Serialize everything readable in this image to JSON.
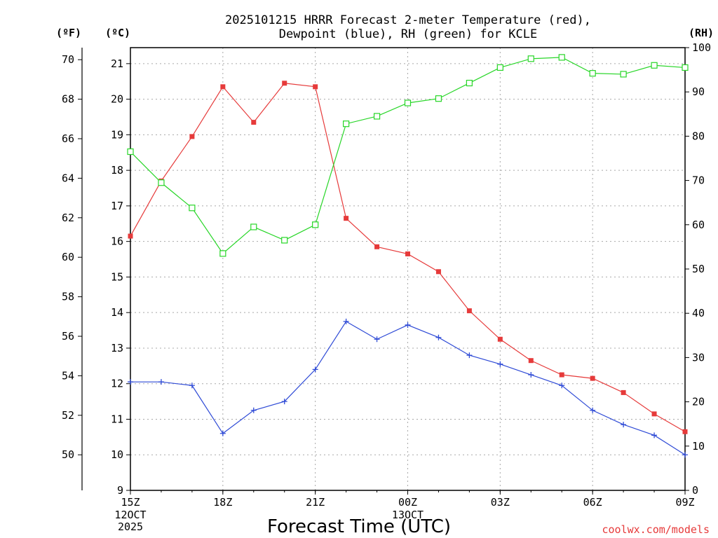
{
  "chart_data": {
    "type": "line",
    "title_lines": [
      "2025101215 HRRR Forecast 2-meter Temperature (red),",
      "Dewpoint (blue), RH (green) for KCLE"
    ],
    "xlabel": "Forecast Time (UTC)",
    "credit": "coolwx.com/models",
    "units": {
      "f": "(ºF)",
      "c": "(ºC)",
      "rh": "(RH)"
    },
    "x_range": [
      0,
      18
    ],
    "x_ticks": [
      {
        "x": 0,
        "label": "15Z",
        "sub": [
          "12OCT",
          "2025"
        ]
      },
      {
        "x": 3,
        "label": "18Z",
        "sub": []
      },
      {
        "x": 6,
        "label": "21Z",
        "sub": []
      },
      {
        "x": 9,
        "label": "00Z",
        "sub": [
          "13OCT"
        ]
      },
      {
        "x": 12,
        "label": "03Z",
        "sub": []
      },
      {
        "x": 15,
        "label": "06Z",
        "sub": []
      },
      {
        "x": 18,
        "label": "09Z",
        "sub": []
      }
    ],
    "c_range": [
      9,
      21.45
    ],
    "c_ticks": [
      "9",
      "10",
      "11",
      "12",
      "13",
      "14",
      "15",
      "16",
      "17",
      "18",
      "19",
      "20",
      "21"
    ],
    "f_ticks": [
      "50",
      "52",
      "54",
      "56",
      "58",
      "60",
      "62",
      "64",
      "66",
      "68",
      "70"
    ],
    "rh_range": [
      0,
      100
    ],
    "rh_ticks": [
      "0",
      "10",
      "20",
      "30",
      "40",
      "50",
      "60",
      "70",
      "80",
      "90",
      "100"
    ],
    "grid": true,
    "series": [
      {
        "name": "Temperature",
        "axis": "c",
        "color": "#e63a3a",
        "marker": "filled-square",
        "values": [
          16.15,
          17.7,
          18.95,
          20.35,
          19.35,
          20.45,
          20.35,
          16.65,
          15.85,
          15.65,
          15.15,
          14.05,
          13.25,
          12.65,
          12.25,
          12.15,
          11.75,
          11.15,
          10.65
        ]
      },
      {
        "name": "Dewpoint",
        "axis": "c",
        "color": "#2e4ad6",
        "marker": "plus",
        "values": [
          12.05,
          12.05,
          11.95,
          10.6,
          11.25,
          11.5,
          12.4,
          13.75,
          13.25,
          13.65,
          13.3,
          12.8,
          12.55,
          12.25,
          11.95,
          11.25,
          10.85,
          10.55,
          10.0
        ]
      },
      {
        "name": "RH",
        "axis": "rh",
        "color": "#27d627",
        "marker": "open-square",
        "values": [
          76.5,
          69.5,
          63.8,
          53.5,
          59.5,
          56.5,
          60.0,
          82.8,
          84.5,
          87.5,
          88.5,
          92.0,
          95.5,
          97.5,
          97.8,
          94.2,
          94.0,
          96.0,
          95.5
        ]
      }
    ]
  }
}
